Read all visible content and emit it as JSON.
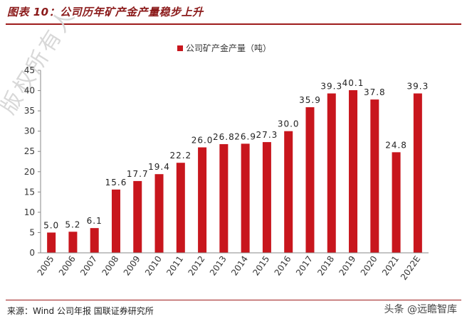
{
  "figure": {
    "title": "图表 10：公司历年矿产金产量稳步上升",
    "source": "来源：Wind 公司年报 国联证券研究所",
    "watermark_footer": "头条 @远瞻智库",
    "watermark_diagonal": "版权所有人"
  },
  "chart_data": {
    "type": "bar",
    "categories": [
      "2005",
      "2006",
      "2007",
      "2008",
      "2009",
      "2010",
      "2011",
      "2012",
      "2013",
      "2014",
      "2015",
      "2016",
      "2017",
      "2018",
      "2019",
      "2020",
      "2021",
      "2022E"
    ],
    "series": [
      {
        "name": "公司矿产金产量（吨）",
        "values": [
          5.0,
          5.2,
          6.1,
          15.6,
          17.7,
          19.4,
          22.2,
          26.0,
          26.8,
          26.9,
          27.3,
          30.0,
          35.9,
          39.3,
          40.1,
          37.8,
          24.8,
          39.3
        ],
        "labels": [
          "5.0",
          "5.2",
          "6.1",
          "15.6",
          "17.7",
          "19.4",
          "22.2",
          "26.0",
          "26.8",
          "26.9",
          "27.3",
          "30.0",
          "35.9",
          "39.3",
          "40.1",
          "37.8",
          "24.8",
          "39.3"
        ]
      }
    ],
    "ylim": [
      0,
      45
    ],
    "yticks": [
      0,
      5,
      10,
      15,
      20,
      25,
      30,
      35,
      40,
      45
    ],
    "ytick_labels": [
      "0",
      "5",
      "10",
      "15",
      "20",
      "25",
      "30",
      "35",
      "40",
      "45"
    ],
    "xlabel": "",
    "ylabel": "",
    "legend_position": "top",
    "grid": false,
    "bar_color": "#c8161d"
  }
}
